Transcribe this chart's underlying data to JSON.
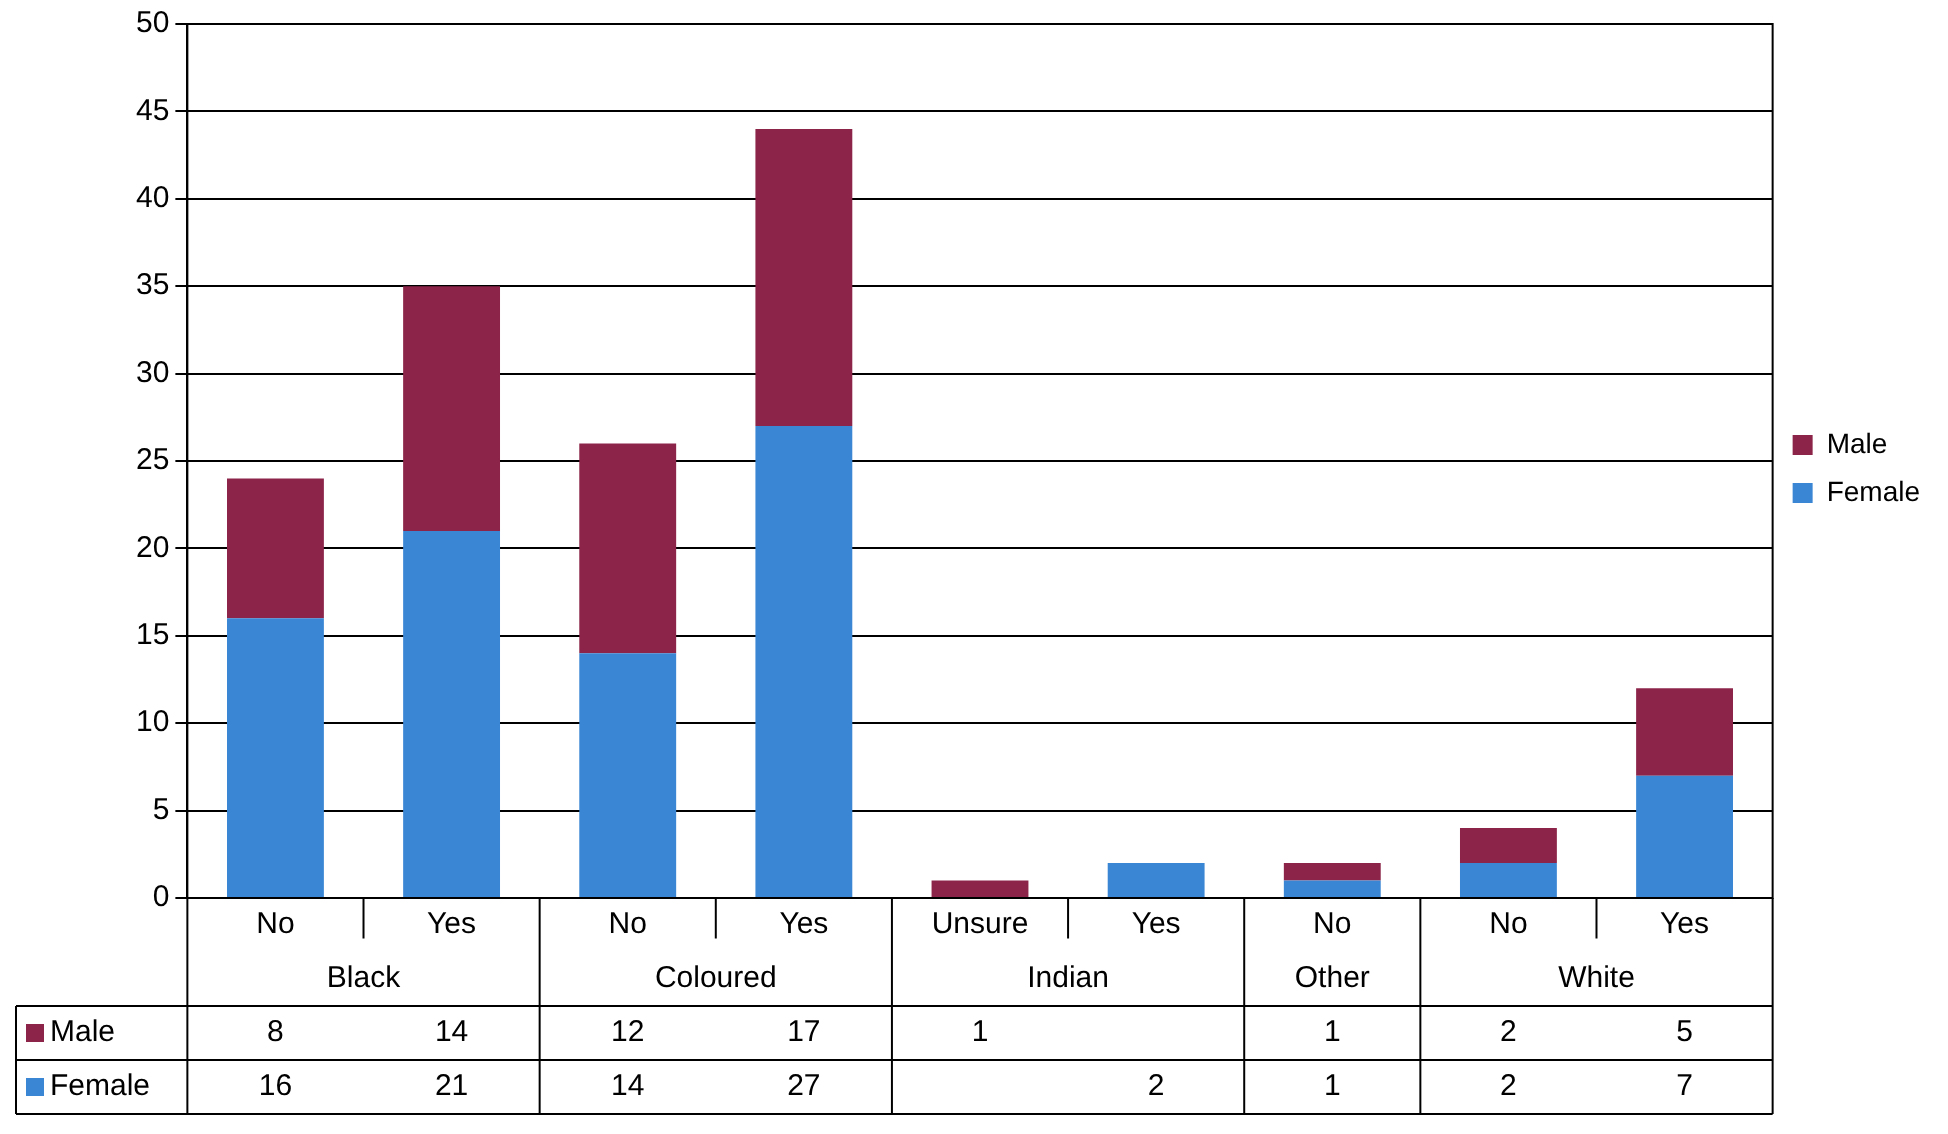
{
  "chart_data": {
    "type": "bar",
    "stacked": true,
    "categories": [
      "No",
      "Yes",
      "No",
      "Yes",
      "Unsure",
      "Yes",
      "No",
      "No",
      "Yes"
    ],
    "series": [
      {
        "name": "Female",
        "color": "#3a86d4",
        "values": [
          16,
          21,
          14,
          27,
          null,
          2,
          1,
          2,
          7
        ]
      },
      {
        "name": "Male",
        "color": "#8c2348",
        "values": [
          8,
          14,
          12,
          17,
          1,
          null,
          1,
          2,
          5
        ]
      }
    ],
    "annotations": [
      "Black",
      "Coloured",
      "Indian",
      "Other",
      "White"
    ],
    "ylim": [
      0,
      50
    ],
    "yticks": [
      0,
      5,
      10,
      15,
      20,
      25,
      30,
      35,
      40,
      45,
      50
    ],
    "grid": "y",
    "legend": "right",
    "data_labels": true
  }
}
